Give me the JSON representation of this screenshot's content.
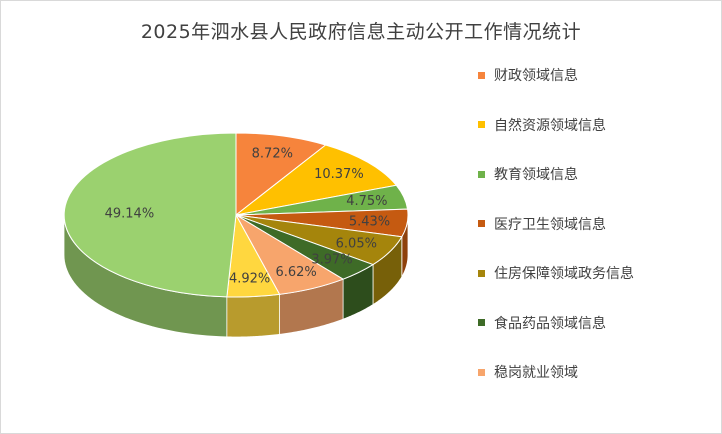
{
  "chart_data": {
    "type": "pie",
    "title": "2025年泗水县人民政府信息主动公开工作情况统计",
    "legend_position": "right",
    "categories": [
      "财政领域信息",
      "自然资源领域信息",
      "教育领域信息",
      "医疗卫生领域信息",
      "住房保障领域政务信息",
      "食品药品领域信息",
      "稳岗就业领域",
      "",
      ""
    ],
    "values": [
      8.72,
      10.37,
      4.75,
      5.43,
      6.05,
      3.97,
      6.62,
      4.92,
      49.14
    ],
    "data_labels": [
      "8.72%",
      "10.37%",
      "4.75%",
      "5.43%",
      "6.05%",
      "3.97%",
      "6.62%",
      "4.92%",
      "49.14%"
    ],
    "colors": [
      "#f6843c",
      "#ffc000",
      "#6fb24a",
      "#c55a11",
      "#a5850c",
      "#3e6b27",
      "#f7a56c",
      "#ffd73f",
      "#9bd16f"
    ],
    "style": "3d-pie"
  }
}
